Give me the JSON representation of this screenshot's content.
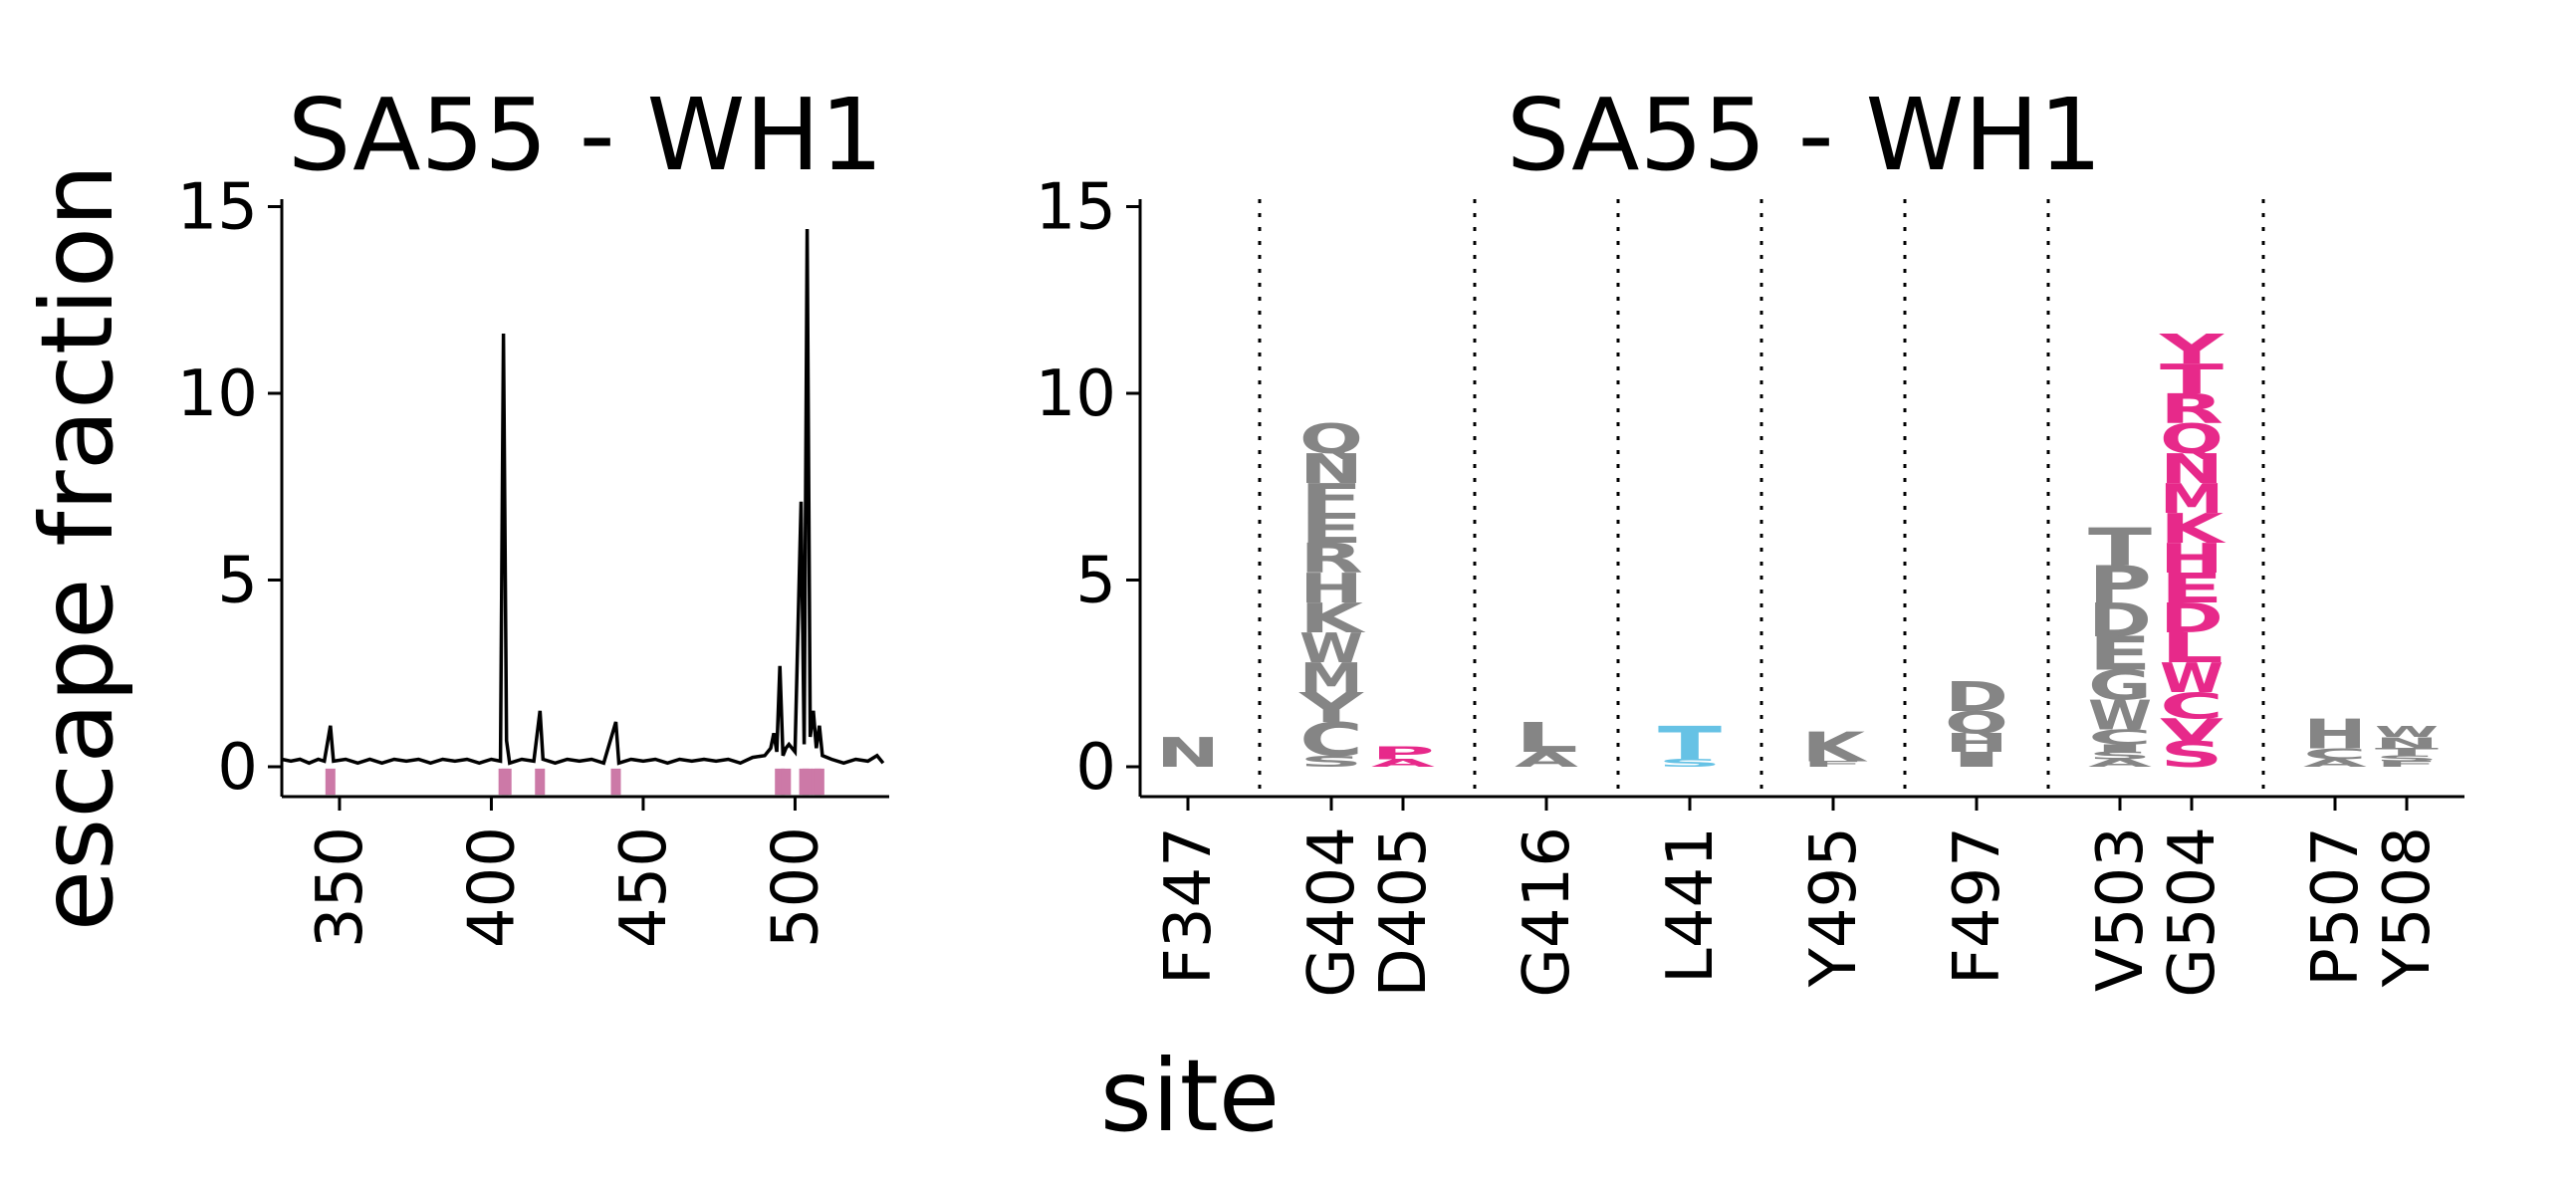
{
  "colors": {
    "gray": "#858585",
    "magenta": "#e7298a",
    "cyan": "#66c2e5",
    "pink_marker": "#cc79a7",
    "line": "#000000"
  },
  "chart_data": [
    {
      "type": "line",
      "title": "SA55 - WH1",
      "ylabel": "escape fraction",
      "xlabel": "",
      "xlim": [
        331,
        531
      ],
      "ylim": [
        -0.8,
        15.2
      ],
      "yticks": [
        0,
        5,
        10,
        15
      ],
      "xticks": [
        350,
        400,
        450,
        500
      ],
      "series": [
        {
          "values": [
            [
              331,
              0.2
            ],
            [
              334,
              0.15
            ],
            [
              337,
              0.2
            ],
            [
              340,
              0.1
            ],
            [
              343,
              0.2
            ],
            [
              345,
              0.15
            ],
            [
              347,
              1.1
            ],
            [
              348,
              0.15
            ],
            [
              352,
              0.2
            ],
            [
              356,
              0.1
            ],
            [
              360,
              0.2
            ],
            [
              364,
              0.1
            ],
            [
              368,
              0.2
            ],
            [
              372,
              0.15
            ],
            [
              376,
              0.2
            ],
            [
              380,
              0.1
            ],
            [
              384,
              0.2
            ],
            [
              388,
              0.15
            ],
            [
              392,
              0.2
            ],
            [
              396,
              0.1
            ],
            [
              400,
              0.2
            ],
            [
              403,
              0.15
            ],
            [
              404,
              11.6
            ],
            [
              405,
              0.7
            ],
            [
              406,
              0.1
            ],
            [
              410,
              0.2
            ],
            [
              414,
              0.15
            ],
            [
              416,
              1.5
            ],
            [
              417,
              0.2
            ],
            [
              421,
              0.1
            ],
            [
              425,
              0.2
            ],
            [
              429,
              0.15
            ],
            [
              433,
              0.2
            ],
            [
              437,
              0.1
            ],
            [
              441,
              1.2
            ],
            [
              442,
              0.1
            ],
            [
              446,
              0.2
            ],
            [
              450,
              0.15
            ],
            [
              454,
              0.2
            ],
            [
              458,
              0.1
            ],
            [
              462,
              0.2
            ],
            [
              466,
              0.15
            ],
            [
              470,
              0.2
            ],
            [
              474,
              0.15
            ],
            [
              478,
              0.2
            ],
            [
              482,
              0.1
            ],
            [
              486,
              0.25
            ],
            [
              490,
              0.3
            ],
            [
              492,
              0.5
            ],
            [
              493,
              0.9
            ],
            [
              494,
              0.4
            ],
            [
              495,
              2.7
            ],
            [
              496,
              0.3
            ],
            [
              497,
              0.5
            ],
            [
              498,
              0.6
            ],
            [
              500,
              0.4
            ],
            [
              502,
              7.1
            ],
            [
              503,
              0.6
            ],
            [
              504,
              14.4
            ],
            [
              505,
              0.8
            ],
            [
              506,
              1.5
            ],
            [
              507,
              0.5
            ],
            [
              508,
              1.1
            ],
            [
              509,
              0.3
            ],
            [
              512,
              0.2
            ],
            [
              516,
              0.1
            ],
            [
              520,
              0.2
            ],
            [
              524,
              0.15
            ],
            [
              527,
              0.3
            ],
            [
              529,
              0.1
            ]
          ]
        }
      ],
      "highlight_sites": [
        347,
        404,
        405,
        416,
        441,
        495,
        497,
        503,
        504,
        507,
        508
      ]
    },
    {
      "type": "logo",
      "title": "SA55 - WH1",
      "xlabel": "site",
      "ylim": [
        -0.8,
        15.2
      ],
      "yticks": [
        0,
        5,
        10,
        15
      ],
      "sites": [
        {
          "label": "F347",
          "group": 0,
          "stacks": [
            {
              "letter": "N",
              "height": 0.8,
              "color": "gray"
            }
          ]
        },
        {
          "label": "G404",
          "group": 1,
          "stacks": [
            {
              "letter": "S",
              "height": 0.3,
              "color": "gray"
            },
            {
              "letter": "C",
              "height": 0.9,
              "color": "gray"
            },
            {
              "letter": "Y",
              "height": 0.8,
              "color": "gray"
            },
            {
              "letter": "M",
              "height": 0.8,
              "color": "gray"
            },
            {
              "letter": "W",
              "height": 0.8,
              "color": "gray"
            },
            {
              "letter": "K",
              "height": 0.8,
              "color": "gray"
            },
            {
              "letter": "H",
              "height": 0.8,
              "color": "gray"
            },
            {
              "letter": "R",
              "height": 0.8,
              "color": "gray"
            },
            {
              "letter": "E",
              "height": 0.8,
              "color": "gray"
            },
            {
              "letter": "F",
              "height": 0.8,
              "color": "gray"
            },
            {
              "letter": "N",
              "height": 0.8,
              "color": "gray"
            },
            {
              "letter": "Q",
              "height": 0.8,
              "color": "gray"
            }
          ]
        },
        {
          "label": "D405",
          "group": 1,
          "stacks": [
            {
              "letter": "A",
              "height": 0.2,
              "color": "magenta"
            },
            {
              "letter": "P",
              "height": 0.35,
              "color": "magenta"
            }
          ]
        },
        {
          "label": "G416",
          "group": 2,
          "stacks": [
            {
              "letter": "A",
              "height": 0.4,
              "color": "gray"
            },
            {
              "letter": "L",
              "height": 0.8,
              "color": "gray"
            }
          ]
        },
        {
          "label": "L441",
          "group": 3,
          "stacks": [
            {
              "letter": "S",
              "height": 0.2,
              "color": "cyan"
            },
            {
              "letter": "T",
              "height": 0.9,
              "color": "cyan"
            }
          ]
        },
        {
          "label": "Y495",
          "group": 4,
          "stacks": [
            {
              "letter": "F",
              "height": 0.15,
              "color": "gray"
            },
            {
              "letter": "K",
              "height": 0.8,
              "color": "gray"
            }
          ]
        },
        {
          "label": "F497",
          "group": 5,
          "stacks": [
            {
              "letter": "I",
              "height": 0.4,
              "color": "gray"
            },
            {
              "letter": "H",
              "height": 0.5,
              "color": "gray"
            },
            {
              "letter": "Q",
              "height": 0.6,
              "color": "gray"
            },
            {
              "letter": "D",
              "height": 0.8,
              "color": "gray"
            }
          ]
        },
        {
          "label": "V503",
          "group": 6,
          "stacks": [
            {
              "letter": "A",
              "height": 0.2,
              "color": "gray"
            },
            {
              "letter": "S",
              "height": 0.2,
              "color": "gray"
            },
            {
              "letter": "I",
              "height": 0.2,
              "color": "gray"
            },
            {
              "letter": "C",
              "height": 0.4,
              "color": "gray"
            },
            {
              "letter": "W",
              "height": 0.8,
              "color": "gray"
            },
            {
              "letter": "G",
              "height": 0.8,
              "color": "gray"
            },
            {
              "letter": "E",
              "height": 0.9,
              "color": "gray"
            },
            {
              "letter": "D",
              "height": 0.9,
              "color": "gray"
            },
            {
              "letter": "P",
              "height": 1.0,
              "color": "gray"
            },
            {
              "letter": "T",
              "height": 1.0,
              "color": "gray"
            }
          ]
        },
        {
          "label": "G504",
          "group": 6,
          "stacks": [
            {
              "letter": "S",
              "height": 0.7,
              "color": "magenta"
            },
            {
              "letter": "V",
              "height": 0.6,
              "color": "magenta"
            },
            {
              "letter": "C",
              "height": 0.7,
              "color": "magenta"
            },
            {
              "letter": "W",
              "height": 0.8,
              "color": "magenta"
            },
            {
              "letter": "L",
              "height": 0.8,
              "color": "magenta"
            },
            {
              "letter": "D",
              "height": 0.8,
              "color": "magenta"
            },
            {
              "letter": "E",
              "height": 0.8,
              "color": "magenta"
            },
            {
              "letter": "H",
              "height": 0.8,
              "color": "magenta"
            },
            {
              "letter": "K",
              "height": 0.8,
              "color": "magenta"
            },
            {
              "letter": "M",
              "height": 0.8,
              "color": "magenta"
            },
            {
              "letter": "N",
              "height": 0.8,
              "color": "magenta"
            },
            {
              "letter": "Q",
              "height": 0.8,
              "color": "magenta"
            },
            {
              "letter": "R",
              "height": 0.8,
              "color": "magenta"
            },
            {
              "letter": "T",
              "height": 0.8,
              "color": "magenta"
            },
            {
              "letter": "Y",
              "height": 0.8,
              "color": "magenta"
            }
          ]
        },
        {
          "label": "P507",
          "group": 7,
          "stacks": [
            {
              "letter": "A",
              "height": 0.2,
              "color": "gray"
            },
            {
              "letter": "C",
              "height": 0.3,
              "color": "gray"
            },
            {
              "letter": "H",
              "height": 0.8,
              "color": "gray"
            }
          ]
        },
        {
          "label": "Y508",
          "group": 7,
          "stacks": [
            {
              "letter": "F",
              "height": 0.15,
              "color": "gray"
            },
            {
              "letter": "S",
              "height": 0.15,
              "color": "gray"
            },
            {
              "letter": "T",
              "height": 0.2,
              "color": "gray"
            },
            {
              "letter": "N",
              "height": 0.3,
              "color": "gray"
            },
            {
              "letter": "W",
              "height": 0.3,
              "color": "gray"
            }
          ]
        }
      ]
    }
  ]
}
